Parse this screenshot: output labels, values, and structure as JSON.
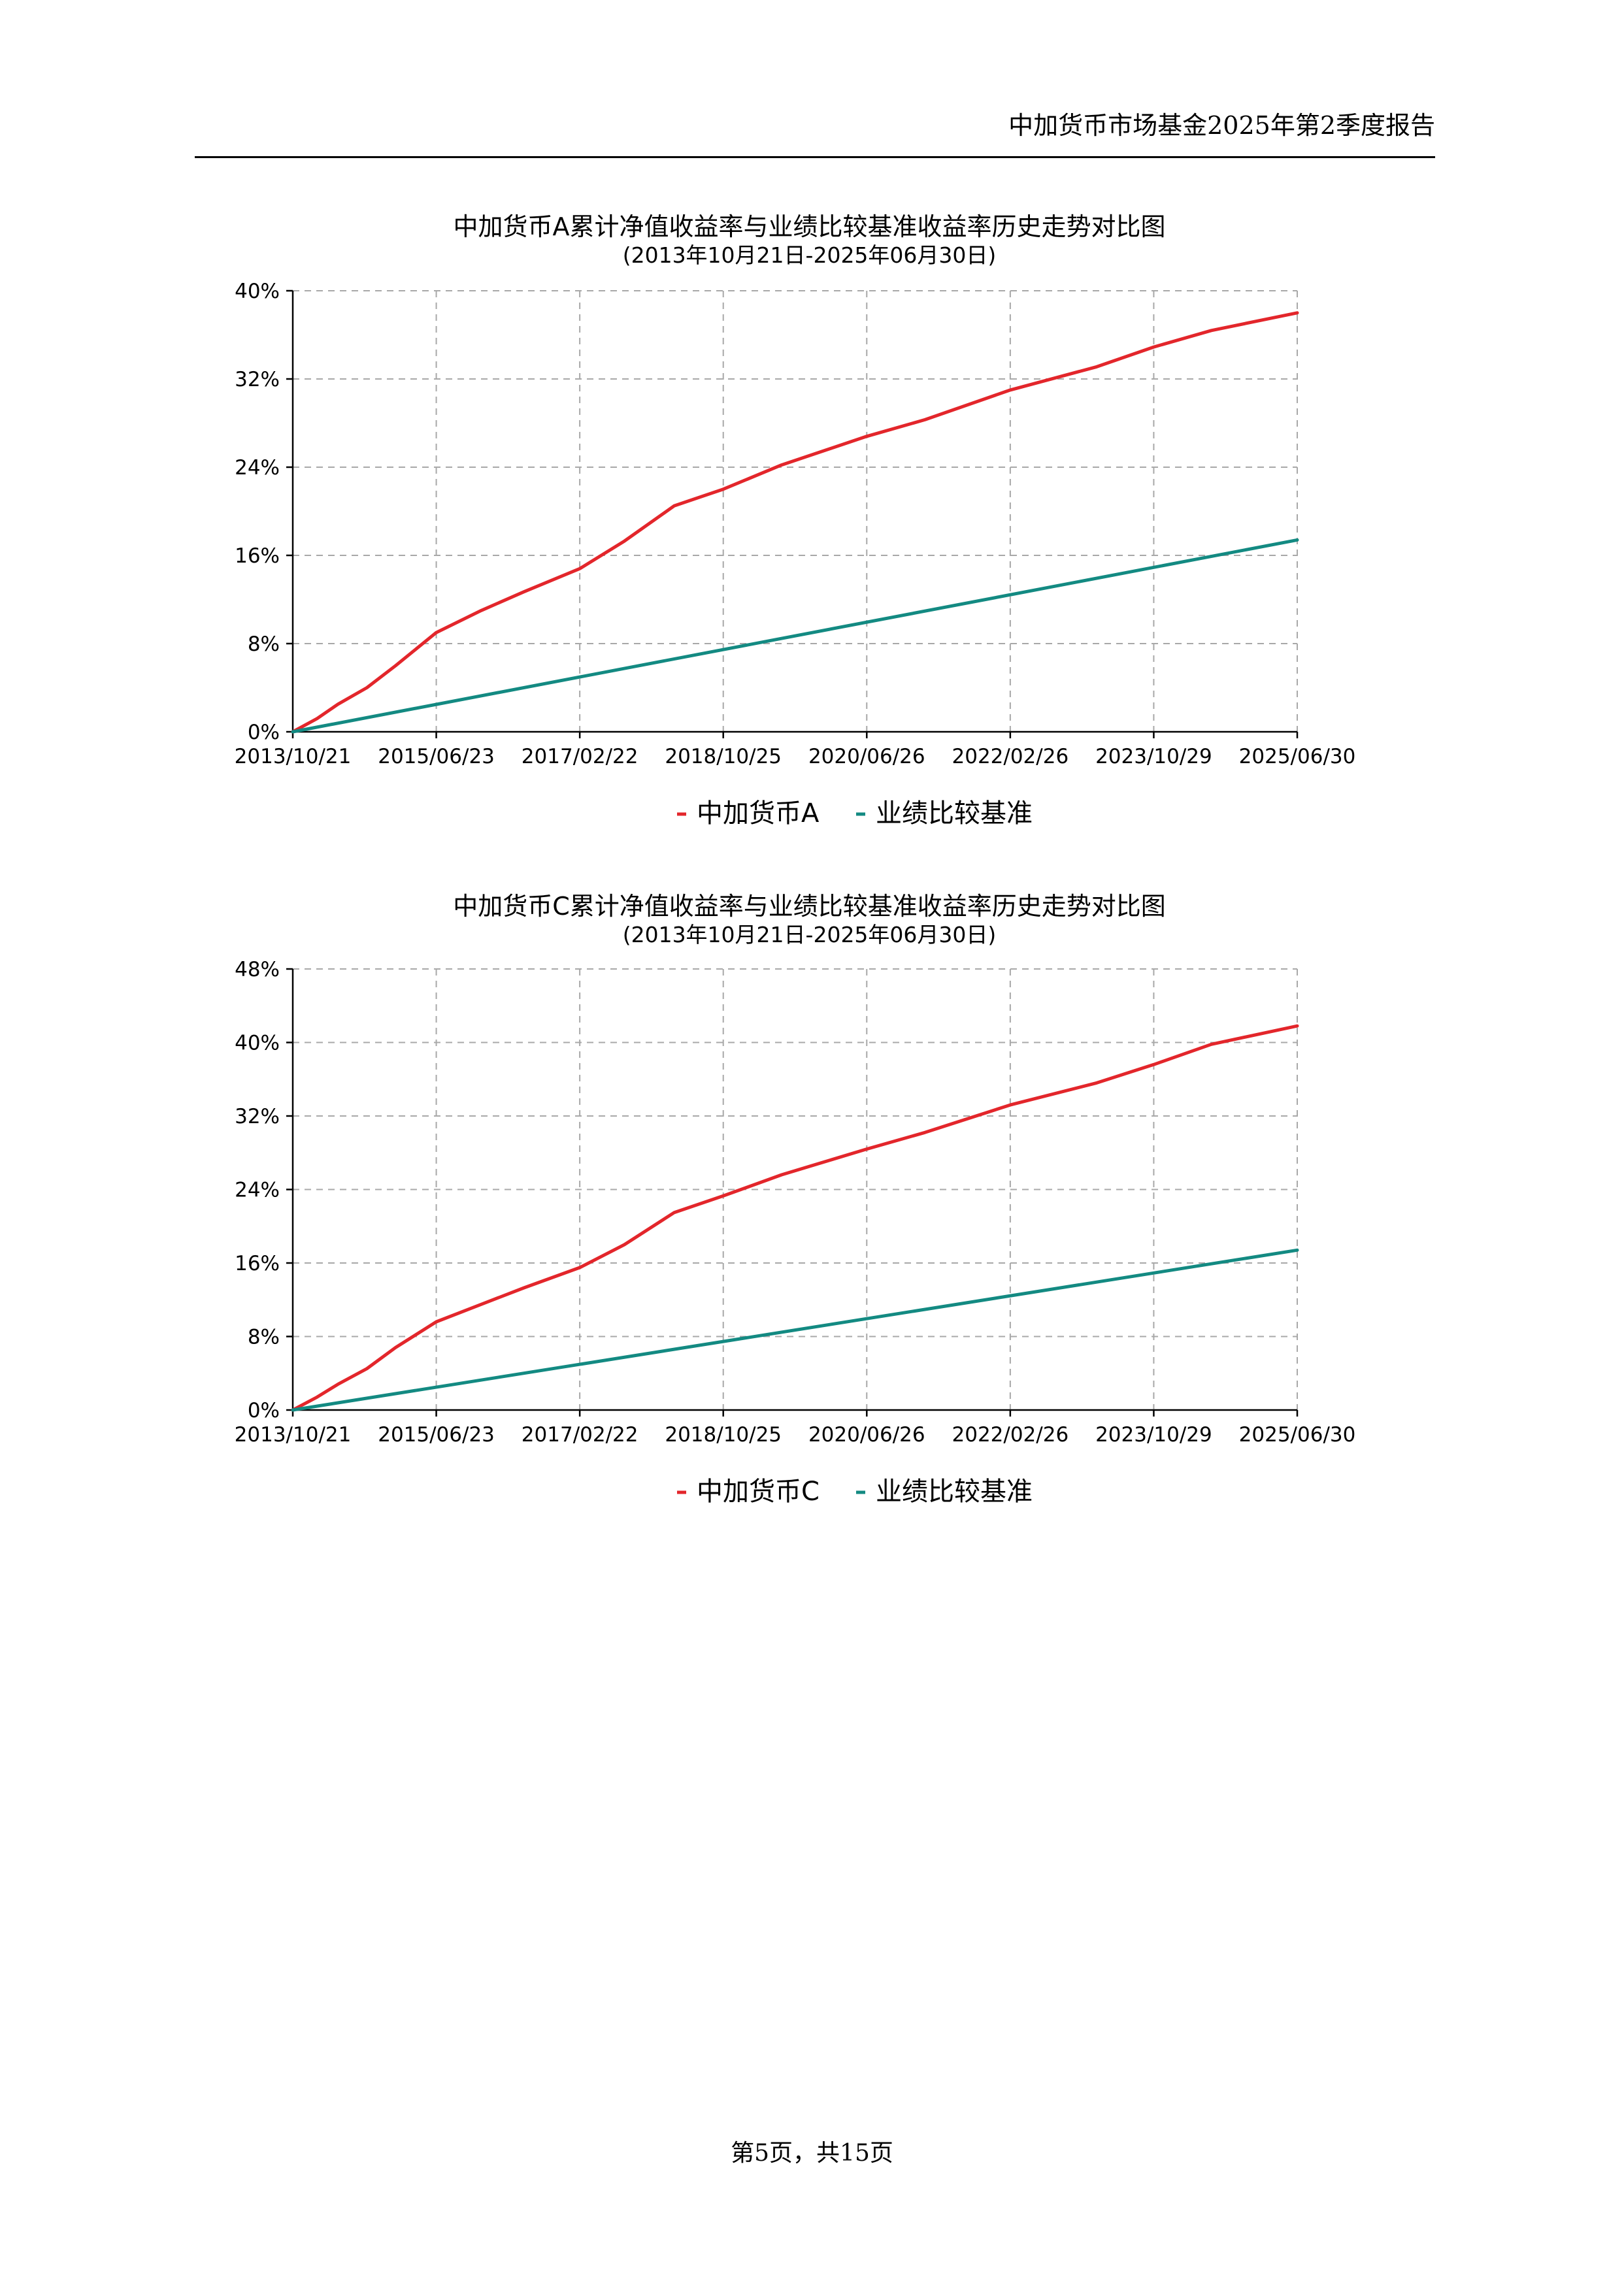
{
  "header": {
    "title": "中加货币市场基金2025年第2季度报告"
  },
  "footer": {
    "page": "第5页，共15页"
  },
  "colors": {
    "fund": "#e3262b",
    "benchmark": "#138a82",
    "grid": "#a8a8a8"
  },
  "chart_data": [
    {
      "type": "line",
      "title": "中加货币A累计净值收益率与业绩比较基准收益率历史走势对比图",
      "subtitle": "(2013年10月21日-2025年06月30日)",
      "x_ticks": [
        "2013/10/21",
        "2015/06/23",
        "2017/02/22",
        "2018/10/25",
        "2020/06/26",
        "2022/02/26",
        "2023/10/29",
        "2025/06/30"
      ],
      "y_ticks": [
        "0%",
        "8%",
        "16%",
        "24%",
        "32%",
        "40%"
      ],
      "ylim": [
        0,
        40
      ],
      "y_unit": "%",
      "grid": true,
      "legend_position": "bottom",
      "series": [
        {
          "name": "中加货币A",
          "color": "#e3262b",
          "x": [
            "2013/10/21",
            "2014/02/01",
            "2014/05/01",
            "2014/09/01",
            "2015/01/01",
            "2015/06/23",
            "2015/12/31",
            "2016/06/30",
            "2017/02/22",
            "2017/08/31",
            "2018/03/31",
            "2018/10/25",
            "2019/06/30",
            "2020/06/26",
            "2021/02/28",
            "2022/02/26",
            "2023/02/28",
            "2023/10/29",
            "2024/06/30",
            "2025/06/30"
          ],
          "y": [
            0,
            1.2,
            2.5,
            4.0,
            6.0,
            9.0,
            11.0,
            12.7,
            14.8,
            17.3,
            20.5,
            22.0,
            24.2,
            26.8,
            28.3,
            31.0,
            33.1,
            34.9,
            36.4,
            38.0
          ]
        },
        {
          "name": "业绩比较基准",
          "color": "#138a82",
          "x": [
            "2013/10/21",
            "2025/06/30"
          ],
          "y": [
            0,
            17.4
          ]
        }
      ]
    },
    {
      "type": "line",
      "title": "中加货币C累计净值收益率与业绩比较基准收益率历史走势对比图",
      "subtitle": "(2013年10月21日-2025年06月30日)",
      "x_ticks": [
        "2013/10/21",
        "2015/06/23",
        "2017/02/22",
        "2018/10/25",
        "2020/06/26",
        "2022/02/26",
        "2023/10/29",
        "2025/06/30"
      ],
      "y_ticks": [
        "0%",
        "8%",
        "16%",
        "24%",
        "32%",
        "40%",
        "48%"
      ],
      "ylim": [
        0,
        48
      ],
      "y_unit": "%",
      "grid": true,
      "legend_position": "bottom",
      "series": [
        {
          "name": "中加货币C",
          "color": "#e3262b",
          "x": [
            "2013/10/21",
            "2014/02/01",
            "2014/05/01",
            "2014/09/01",
            "2015/01/01",
            "2015/06/23",
            "2015/12/31",
            "2016/06/30",
            "2017/02/22",
            "2017/08/31",
            "2018/03/31",
            "2018/10/25",
            "2019/06/30",
            "2020/06/26",
            "2021/02/28",
            "2022/02/26",
            "2023/02/28",
            "2023/10/29",
            "2024/06/30",
            "2025/06/30"
          ],
          "y": [
            0,
            1.4,
            2.8,
            4.5,
            6.8,
            9.6,
            11.5,
            13.3,
            15.5,
            18.0,
            21.5,
            23.3,
            25.6,
            28.4,
            30.2,
            33.2,
            35.6,
            37.6,
            39.8,
            41.8
          ]
        },
        {
          "name": "业绩比较基准",
          "color": "#138a82",
          "x": [
            "2013/10/21",
            "2025/06/30"
          ],
          "y": [
            0,
            17.4
          ]
        }
      ]
    }
  ]
}
